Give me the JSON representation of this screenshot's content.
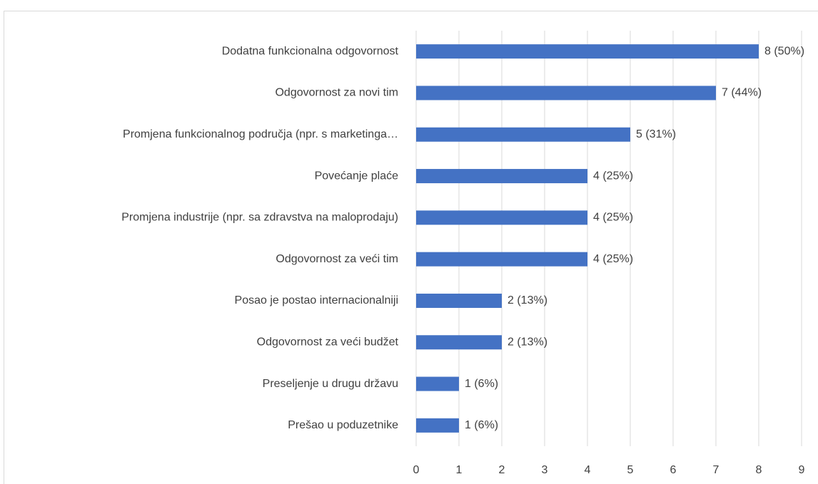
{
  "chart_data": {
    "type": "bar",
    "orientation": "horizontal",
    "categories": [
      "Dodatna funkcionalna odgovornost",
      "Odgovornost za novi tim",
      "Promjena funkcionalnog područja (npr. s marketinga…",
      "Povećanje plaće",
      "Promjena industrije (npr. sa zdravstva na maloprodaju)",
      "Odgovornost za veći tim",
      "Posao je postao internacionalniji",
      "Odgovornost za veći budžet",
      "Preseljenje u drugu državu",
      "Prešao u poduzetnike"
    ],
    "values": [
      8,
      7,
      5,
      4,
      4,
      4,
      2,
      2,
      1,
      1
    ],
    "value_labels": [
      "8 (50%)",
      "7 (44%)",
      "5 (31%)",
      "4 (25%)",
      "4 (25%)",
      "4 (25%)",
      "2 (13%)",
      "2 (13%)",
      "1 (6%)",
      "1 (6%)"
    ],
    "color": "#4472c4",
    "xlim": [
      0,
      9
    ],
    "xticks": [
      0,
      1,
      2,
      3,
      4,
      5,
      6,
      7,
      8,
      9
    ],
    "grid": true
  }
}
